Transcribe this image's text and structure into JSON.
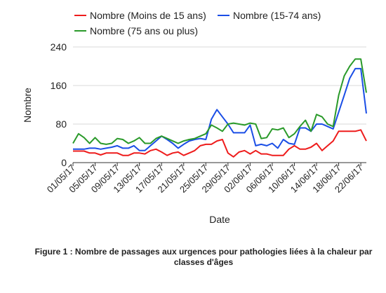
{
  "chart_data": {
    "type": "line",
    "xlabel": "Date",
    "ylabel": "Nombre",
    "ylim": [
      0,
      240
    ],
    "yticks": [
      0,
      80,
      160,
      240
    ],
    "grid": "horizontal",
    "legend_position": "top",
    "x_tick_labels": [
      "01/05/17",
      "05/05/17",
      "09/05/17",
      "13/05/17",
      "17/05/17",
      "21/05/17",
      "25/05/17",
      "29/05/17",
      "02/06/17",
      "06/06/17",
      "10/06/17",
      "14/06/17",
      "18/06/17",
      "22/06/17"
    ],
    "x": [
      "01/05/17",
      "02/05/17",
      "03/05/17",
      "04/05/17",
      "05/05/17",
      "06/05/17",
      "07/05/17",
      "08/05/17",
      "09/05/17",
      "10/05/17",
      "11/05/17",
      "12/05/17",
      "13/05/17",
      "14/05/17",
      "15/05/17",
      "16/05/17",
      "17/05/17",
      "18/05/17",
      "19/05/17",
      "20/05/17",
      "21/05/17",
      "22/05/17",
      "23/05/17",
      "24/05/17",
      "25/05/17",
      "26/05/17",
      "27/05/17",
      "28/05/17",
      "29/05/17",
      "30/05/17",
      "31/05/17",
      "01/06/17",
      "02/06/17",
      "03/06/17",
      "04/06/17",
      "05/06/17",
      "06/06/17",
      "07/06/17",
      "08/06/17",
      "09/06/17",
      "10/06/17",
      "11/06/17",
      "12/06/17",
      "13/06/17",
      "14/06/17",
      "15/06/17",
      "16/06/17",
      "17/06/17",
      "18/06/17",
      "19/06/17",
      "20/06/17",
      "21/06/17",
      "22/06/17",
      "23/06/17"
    ],
    "series": [
      {
        "name": "Nombre (Moins de 15 ans)",
        "color": "#ee1c1c",
        "values": [
          24,
          24,
          24,
          20,
          20,
          16,
          20,
          20,
          20,
          15,
          15,
          20,
          20,
          18,
          25,
          28,
          22,
          15,
          20,
          22,
          15,
          20,
          25,
          35,
          38,
          38,
          45,
          48,
          20,
          12,
          22,
          25,
          18,
          25,
          18,
          18,
          15,
          15,
          15,
          28,
          35,
          28,
          28,
          32,
          40,
          25,
          35,
          45,
          65,
          65,
          65,
          65,
          68,
          45
        ]
      },
      {
        "name": "Nombre (15-74 ans)",
        "color": "#1a4ee6",
        "values": [
          28,
          28,
          28,
          30,
          30,
          28,
          30,
          32,
          35,
          30,
          30,
          35,
          25,
          25,
          35,
          45,
          55,
          48,
          40,
          30,
          38,
          45,
          48,
          50,
          48,
          90,
          110,
          95,
          80,
          62,
          62,
          62,
          78,
          35,
          38,
          35,
          40,
          30,
          48,
          40,
          38,
          72,
          72,
          65,
          80,
          80,
          75,
          70,
          105,
          140,
          175,
          195,
          195,
          102
        ]
      },
      {
        "name": "Nombre (75 ans ou plus)",
        "color": "#2a9a2a",
        "values": [
          40,
          60,
          52,
          40,
          52,
          40,
          38,
          40,
          50,
          48,
          40,
          45,
          52,
          40,
          40,
          50,
          55,
          50,
          45,
          40,
          45,
          48,
          50,
          55,
          60,
          78,
          72,
          65,
          80,
          82,
          80,
          78,
          82,
          80,
          50,
          52,
          70,
          68,
          72,
          52,
          60,
          75,
          88,
          65,
          100,
          95,
          80,
          75,
          140,
          180,
          200,
          215,
          215,
          145
        ]
      }
    ]
  },
  "caption": {
    "line1": "Figure 1 : Nombre de passages aux urgences pour pathologies liées à la chaleur par",
    "line2": "classes d'âges"
  }
}
